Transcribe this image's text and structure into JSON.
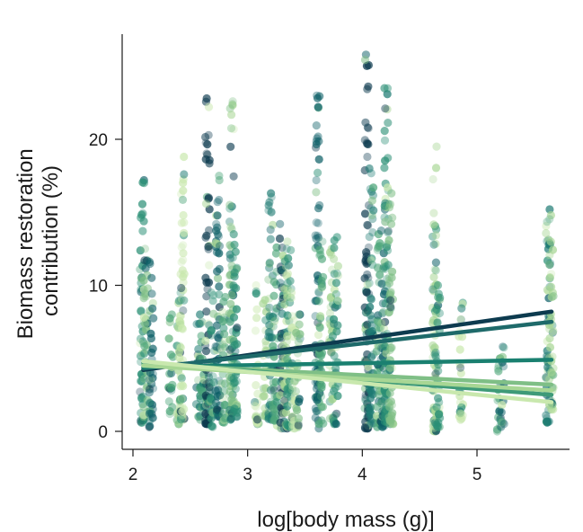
{
  "chart_data": {
    "type": "scatter",
    "title": "",
    "xlabel": "log[body mass (g)]",
    "ylabel_lines": [
      "Biomass restoration",
      "contribution (%)"
    ],
    "xlim": [
      1.9,
      5.8
    ],
    "ylim": [
      -1,
      27
    ],
    "xticks": [
      2,
      3,
      4,
      5
    ],
    "yticks": [
      0,
      10,
      20
    ],
    "grid": false,
    "legend": "none",
    "palette": [
      "#0d3b4f",
      "#0b5e66",
      "#1e7b73",
      "#2a8f75",
      "#4ea67a",
      "#7fbf86",
      "#a7d694",
      "#c9e8ae"
    ],
    "point_columns": [
      {
        "x": 2.08,
        "min": 0.6,
        "max": 17.2,
        "color": "#2a8f75"
      },
      {
        "x": 2.11,
        "min": 1.0,
        "max": 12.5,
        "color": "#7fbf86"
      },
      {
        "x": 2.16,
        "min": 0.3,
        "max": 11.6,
        "color": "#0b5e66"
      },
      {
        "x": 2.33,
        "min": 1.2,
        "max": 8.0,
        "color": "#4ea67a"
      },
      {
        "x": 2.4,
        "min": 0.5,
        "max": 9.0,
        "color": "#a7d694"
      },
      {
        "x": 2.43,
        "min": 0.8,
        "max": 18.8,
        "color": "#c9e8ae"
      },
      {
        "x": 2.57,
        "min": 1.0,
        "max": 8.0,
        "color": "#1e7b73"
      },
      {
        "x": 2.6,
        "min": 0.8,
        "max": 7.5,
        "color": "#4ea67a"
      },
      {
        "x": 2.65,
        "min": 0.5,
        "max": 22.8,
        "color": "#0d3b4f"
      },
      {
        "x": 2.69,
        "min": 0.3,
        "max": 9.5,
        "color": "#2a8f75"
      },
      {
        "x": 2.74,
        "min": 1.0,
        "max": 17.5,
        "color": "#0b5e66"
      },
      {
        "x": 2.79,
        "min": 0.6,
        "max": 9.2,
        "color": "#4ea67a"
      },
      {
        "x": 2.86,
        "min": 0.8,
        "max": 22.6,
        "color": "#7fbf86"
      },
      {
        "x": 2.89,
        "min": 1.0,
        "max": 13.5,
        "color": "#2a8f75"
      },
      {
        "x": 3.08,
        "min": 0.5,
        "max": 10.0,
        "color": "#c9e8ae"
      },
      {
        "x": 3.15,
        "min": 1.0,
        "max": 9.0,
        "color": "#a7d694"
      },
      {
        "x": 3.2,
        "min": 0.8,
        "max": 16.3,
        "color": "#1e7b73"
      },
      {
        "x": 3.24,
        "min": 0.4,
        "max": 12.6,
        "color": "#4ea67a"
      },
      {
        "x": 3.3,
        "min": 0.2,
        "max": 14.2,
        "color": "#0d3b4f"
      },
      {
        "x": 3.33,
        "min": 0.2,
        "max": 13.0,
        "color": "#a7d694"
      },
      {
        "x": 3.36,
        "min": 0.3,
        "max": 12.5,
        "color": "#2a8f75"
      },
      {
        "x": 3.4,
        "min": 0.2,
        "max": 9.5,
        "color": "#c9e8ae"
      },
      {
        "x": 3.44,
        "min": 0.3,
        "max": 8.0,
        "color": "#7fbf86"
      },
      {
        "x": 3.61,
        "min": 0.2,
        "max": 23.0,
        "color": "#0b5e66"
      },
      {
        "x": 3.64,
        "min": 0.5,
        "max": 13.0,
        "color": "#4ea67a"
      },
      {
        "x": 3.73,
        "min": 0.8,
        "max": 12.5,
        "color": "#a7d694"
      },
      {
        "x": 3.77,
        "min": 0.5,
        "max": 13.3,
        "color": "#2a8f75"
      },
      {
        "x": 4.04,
        "min": 0.2,
        "max": 25.8,
        "color": "#0d3b4f"
      },
      {
        "x": 4.08,
        "min": 0.5,
        "max": 18.0,
        "color": "#1e7b73"
      },
      {
        "x": 4.14,
        "min": 0.3,
        "max": 13.5,
        "color": "#4ea67a"
      },
      {
        "x": 4.18,
        "min": 0.3,
        "max": 15.2,
        "color": "#0b5e66"
      },
      {
        "x": 4.21,
        "min": 0.6,
        "max": 23.5,
        "color": "#2a8f75"
      },
      {
        "x": 4.25,
        "min": 0.5,
        "max": 16.3,
        "color": "#7fbf86"
      },
      {
        "x": 4.63,
        "min": 0.0,
        "max": 19.5,
        "color": "#a7d694"
      },
      {
        "x": 4.66,
        "min": 0.3,
        "max": 10.0,
        "color": "#2a8f75"
      },
      {
        "x": 4.86,
        "min": 0.8,
        "max": 8.8,
        "color": "#c9e8ae"
      },
      {
        "x": 5.19,
        "min": 0.0,
        "max": 5.0,
        "color": "#4ea67a"
      },
      {
        "x": 5.22,
        "min": 0.3,
        "max": 5.8,
        "color": "#0b5e66"
      },
      {
        "x": 5.62,
        "min": 0.6,
        "max": 15.2,
        "color": "#1e7b73"
      },
      {
        "x": 5.65,
        "min": 1.5,
        "max": 14.8,
        "color": "#a7d694"
      }
    ],
    "regression_lines": [
      {
        "x0": 2.09,
        "y0": 4.2,
        "x1": 5.65,
        "y1": 8.2,
        "color": "#0d3b4f"
      },
      {
        "x0": 2.09,
        "y0": 4.3,
        "x1": 5.65,
        "y1": 7.5,
        "color": "#1e6a6a"
      },
      {
        "x0": 2.09,
        "y0": 4.4,
        "x1": 5.65,
        "y1": 4.9,
        "color": "#1a8070"
      },
      {
        "x0": 2.09,
        "y0": 4.6,
        "x1": 5.65,
        "y1": 3.2,
        "color": "#7fbf86"
      },
      {
        "x0": 2.09,
        "y0": 4.7,
        "x1": 5.65,
        "y1": 2.5,
        "color": "#3e9a78"
      },
      {
        "x0": 2.09,
        "y0": 4.5,
        "x1": 5.65,
        "y1": 2.8,
        "color": "#a7d694"
      },
      {
        "x0": 2.09,
        "y0": 4.8,
        "x1": 5.65,
        "y1": 2.0,
        "color": "#c9e8ae"
      }
    ]
  }
}
